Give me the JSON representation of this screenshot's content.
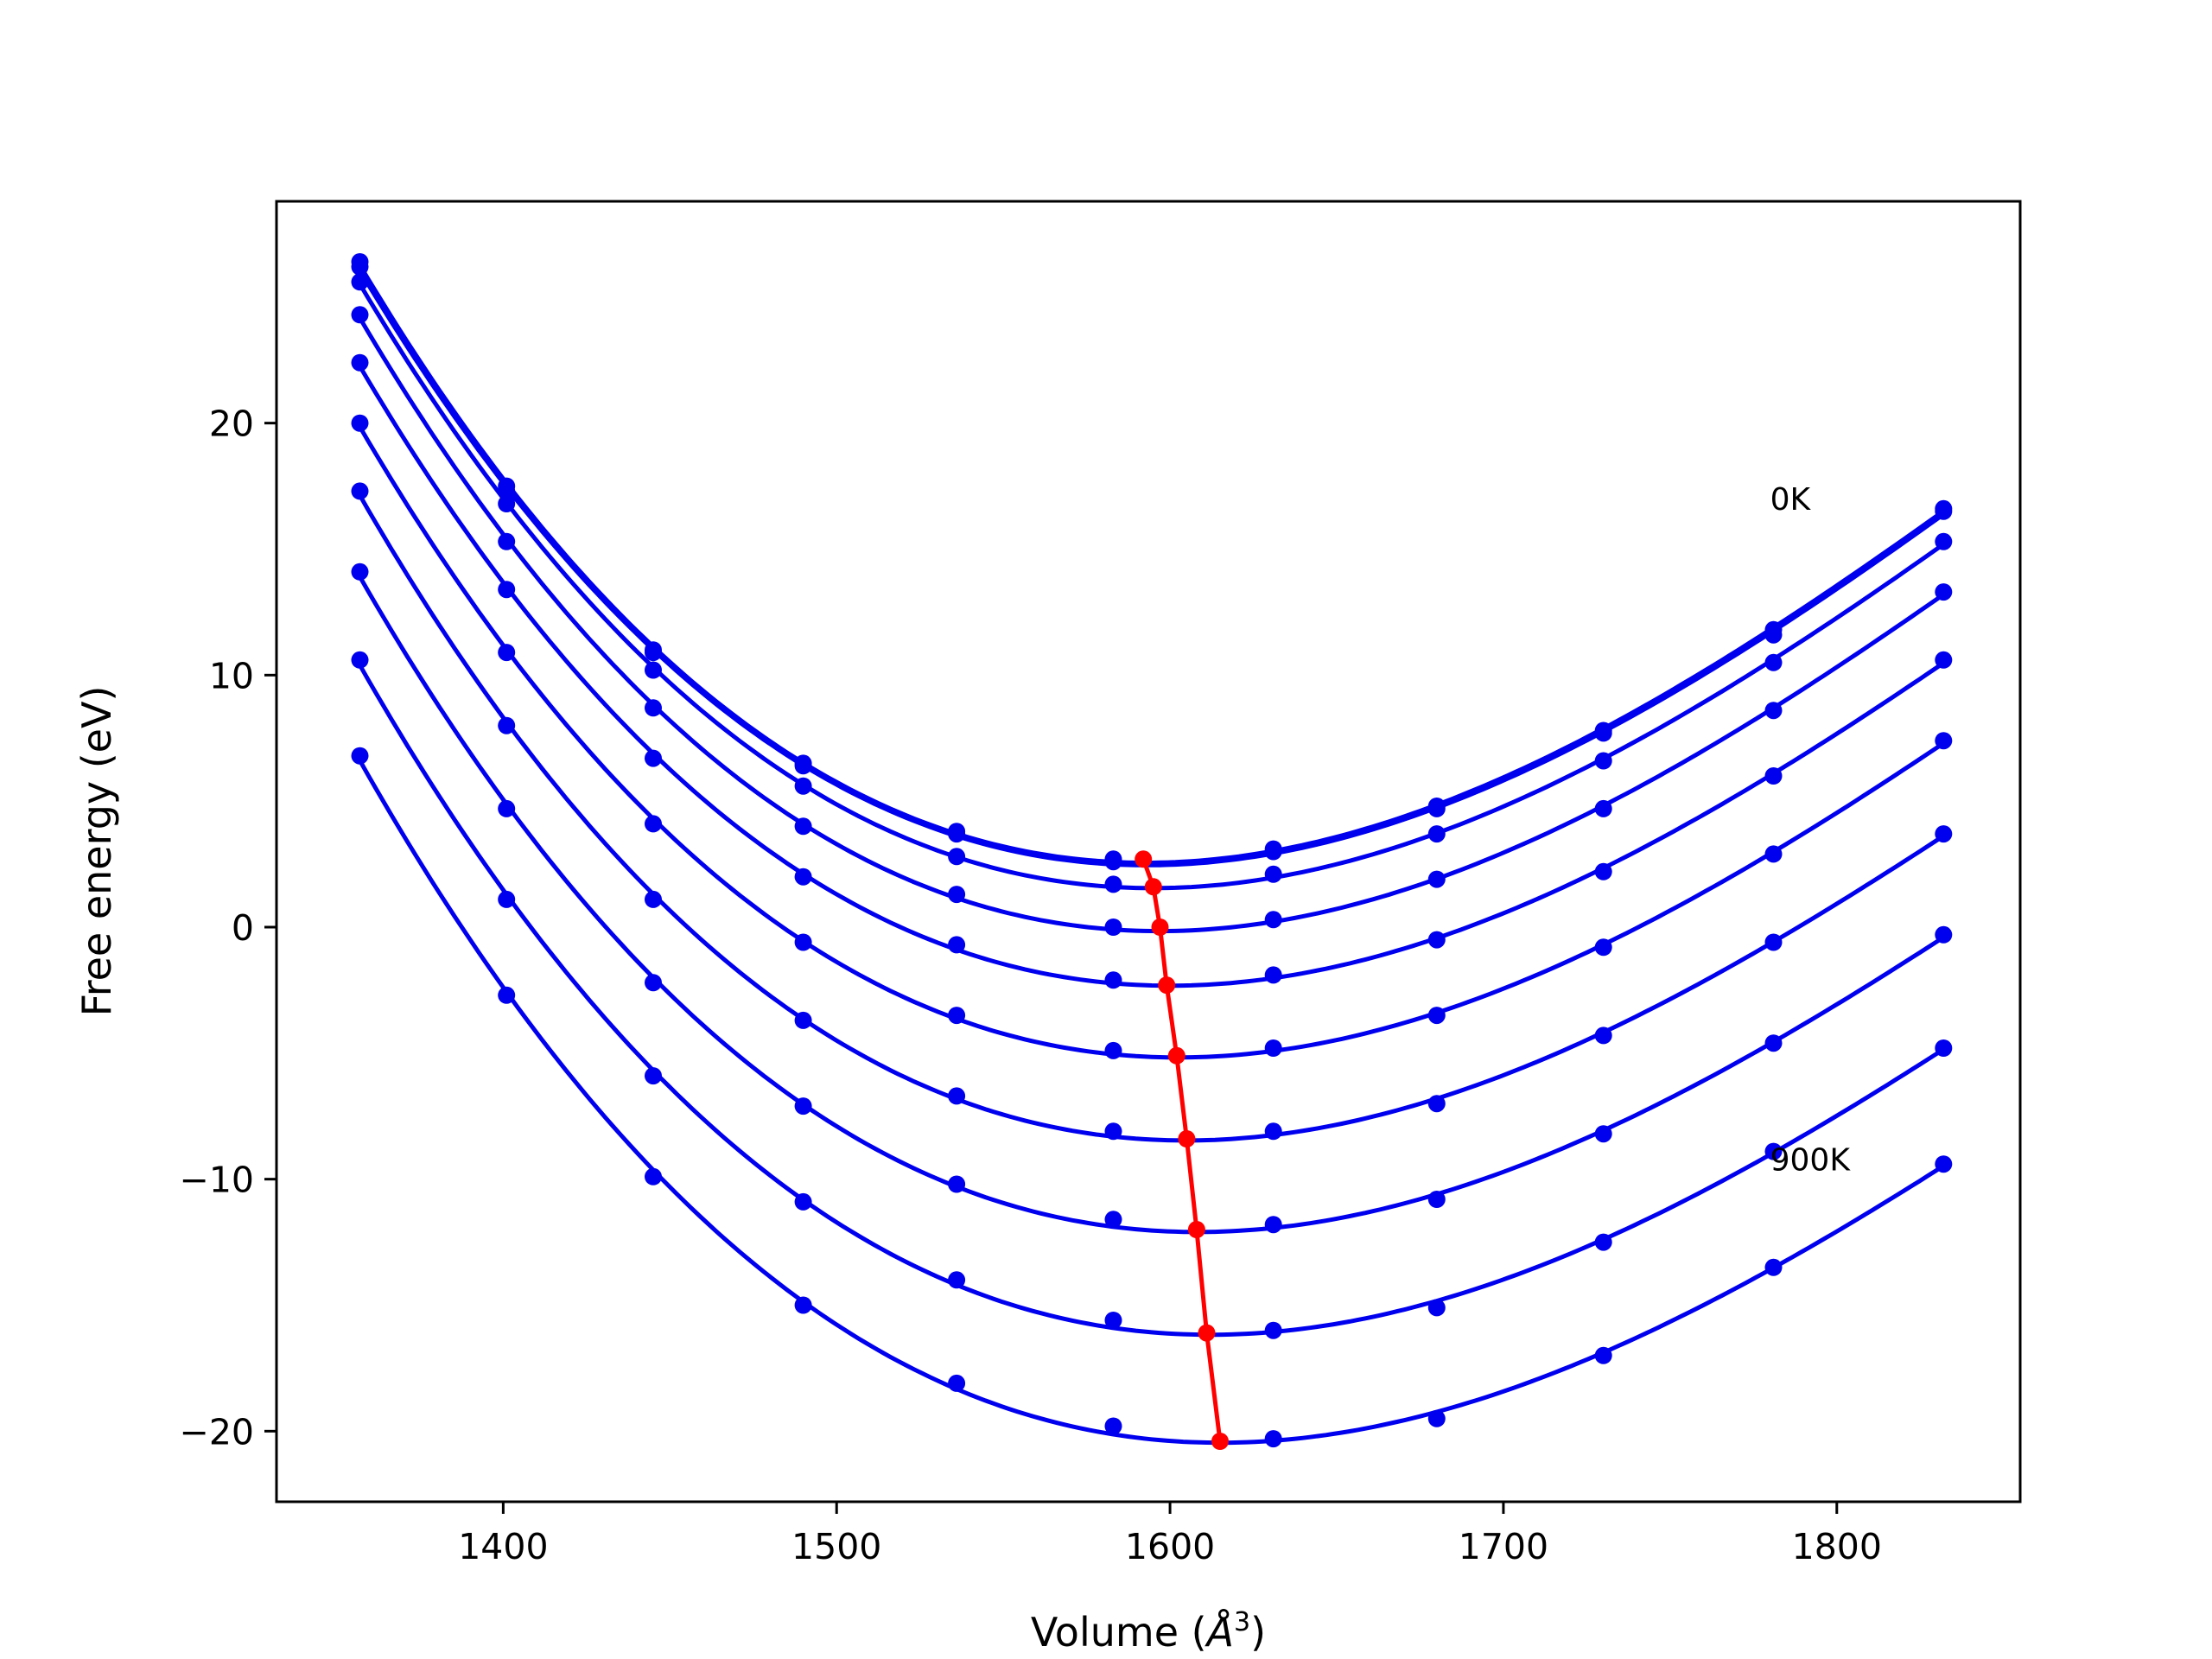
{
  "chart_data": {
    "type": "line",
    "title": "",
    "xlabel_text": "Volume (",
    "xlabel_unit": "Å",
    "xlabel_exp": "3",
    "xlabel_close": ")",
    "ylabel": "Free energy (eV)",
    "xlim": [
      1332,
      1855
    ],
    "ylim": [
      -22.8,
      28.8
    ],
    "xticks": [
      1400,
      1500,
      1600,
      1700,
      1800
    ],
    "yticks": [
      -20,
      -10,
      0,
      10,
      20
    ],
    "ytick_labels": [
      "−20",
      "−10",
      "0",
      "10",
      "20"
    ],
    "grid": false,
    "legend": "none",
    "annotations": [
      {
        "text": "0K",
        "x": 1780,
        "y": 17
      },
      {
        "text": "900K",
        "x": 1780,
        "y": -9.2
      }
    ],
    "volumes": [
      1357,
      1401,
      1445,
      1490,
      1536,
      1583,
      1631,
      1680,
      1730,
      1781,
      1832
    ],
    "series": [
      {
        "temperature_index": 0,
        "points": [
          26.4,
          17.5,
          11.0,
          6.5,
          3.8,
          2.7,
          3.1,
          4.8,
          7.8,
          11.8,
          16.6
        ]
      },
      {
        "temperature_index": 1,
        "points": [
          26.2,
          17.3,
          10.9,
          6.4,
          3.7,
          2.6,
          3.0,
          4.7,
          7.7,
          11.6,
          16.5
        ]
      },
      {
        "temperature_index": 2,
        "points": [
          25.6,
          16.8,
          10.2,
          5.6,
          2.8,
          1.7,
          2.1,
          3.7,
          6.6,
          10.5,
          15.3
        ]
      },
      {
        "temperature_index": 3,
        "points": [
          24.3,
          15.3,
          8.7,
          4.0,
          1.3,
          0.0,
          0.3,
          1.9,
          4.7,
          8.6,
          13.3
        ]
      },
      {
        "temperature_index": 4,
        "points": [
          22.4,
          13.4,
          6.7,
          2.0,
          -0.7,
          -2.1,
          -1.9,
          -0.5,
          2.2,
          6.0,
          10.6
        ]
      },
      {
        "temperature_index": 5,
        "points": [
          20.0,
          10.9,
          4.1,
          -0.6,
          -3.5,
          -4.9,
          -4.8,
          -3.5,
          -0.8,
          2.9,
          7.4
        ]
      },
      {
        "temperature_index": 6,
        "points": [
          17.3,
          8.0,
          1.1,
          -3.7,
          -6.7,
          -8.1,
          -8.1,
          -7.0,
          -4.3,
          -0.6,
          3.7
        ]
      },
      {
        "temperature_index": 7,
        "points": [
          14.1,
          4.7,
          -2.2,
          -7.1,
          -10.2,
          -11.6,
          -11.8,
          -10.8,
          -8.2,
          -4.6,
          -0.3
        ]
      },
      {
        "temperature_index": 8,
        "points": [
          10.6,
          1.1,
          -5.9,
          -10.9,
          -14.0,
          -15.6,
          -16.0,
          -15.1,
          -12.5,
          -8.9,
          -4.8
        ]
      },
      {
        "temperature_index": 9,
        "points": [
          6.8,
          -2.7,
          -9.9,
          -15.0,
          -18.1,
          -19.8,
          -20.3,
          -19.5,
          -17.0,
          -13.5,
          -9.4
        ]
      }
    ],
    "minima": [
      {
        "x": 1592,
        "y": 2.7
      },
      {
        "x": 1595,
        "y": 1.6
      },
      {
        "x": 1597,
        "y": 0.0
      },
      {
        "x": 1599,
        "y": -2.3
      },
      {
        "x": 1602,
        "y": -5.1
      },
      {
        "x": 1605,
        "y": -8.4
      },
      {
        "x": 1608,
        "y": -12.0
      },
      {
        "x": 1611,
        "y": -16.1
      },
      {
        "x": 1615,
        "y": -20.4
      }
    ],
    "colors": {
      "curves": "#0000ee",
      "minima": "#ff0000",
      "axes": "#000000"
    }
  }
}
